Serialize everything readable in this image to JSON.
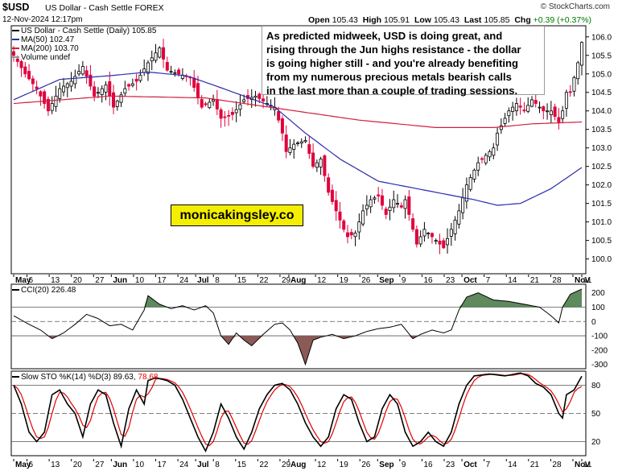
{
  "header": {
    "symbol": "$USD",
    "description": "US Dollar - Cash Settle",
    "exchange": "FOREX",
    "datetime": "12-Nov-2024 12:17pm",
    "open_label": "Open",
    "open": "105.43",
    "high_label": "High",
    "high": "105.91",
    "low_label": "Low",
    "low": "105.43",
    "last_label": "Last",
    "last": "105.85",
    "chg_label": "Chg",
    "chg": "+0.39 (+0.37%)",
    "brand_mark": "© StockCharts.com"
  },
  "annotation": "As predicted midweek, USD is doing great, and\nrising through the Jun highs resistance - the dollar\nis going higher still - and you're already benefiting\nfrom my numerous precious metals bearish calls\nin the last more than a couple of trading sessions.",
  "watermark": "monicakingsley.co",
  "colors": {
    "up": "#000000",
    "down": "#e0003c",
    "ma50": "#2b2baa",
    "ma200": "#d0203c",
    "cci_pos": "#5e8a5e",
    "cci_neg": "#8b5a56",
    "stoch_k": "#000000",
    "stoch_d": "#e00000"
  },
  "chart_data": [
    {
      "type": "candlestick",
      "legend": [
        {
          "key": "price",
          "label": "US Dollar - Cash Settle (Daily) 105.85"
        },
        {
          "key": "ma50",
          "label": "MA(50) 102.47"
        },
        {
          "key": "ma200",
          "label": "MA(200) 103.70"
        },
        {
          "key": "volume",
          "label": "Volume undef"
        }
      ],
      "ylim": [
        99.6,
        106.3
      ],
      "y_ticks": [
        "106.0",
        "105.5",
        "105.0",
        "104.5",
        "104.0",
        "103.5",
        "103.0",
        "102.5",
        "102.0",
        "101.5",
        "101.0",
        "100.5",
        "100.0"
      ],
      "x_labels": [
        "May",
        "6",
        "13",
        "20",
        "27",
        "Jun",
        "10",
        "17",
        "24",
        "Jul",
        "8",
        "15",
        "22",
        "29",
        "Aug",
        "12",
        "19",
        "26",
        "Sep",
        "9",
        "16",
        "23",
        "Oct",
        "7",
        "14",
        "21",
        "28",
        "Nov",
        "11"
      ],
      "close_anchors": [
        [
          0,
          105.5
        ],
        [
          3,
          105.0
        ],
        [
          6,
          104.6
        ],
        [
          9,
          104.0
        ],
        [
          12,
          104.6
        ],
        [
          15,
          104.8
        ],
        [
          18,
          105.2
        ],
        [
          21,
          104.4
        ],
        [
          24,
          104.7
        ],
        [
          26,
          104.1
        ],
        [
          29,
          104.6
        ],
        [
          32,
          104.8
        ],
        [
          35,
          105.3
        ],
        [
          38,
          105.7
        ],
        [
          40,
          105.1
        ],
        [
          43,
          105.0
        ],
        [
          46,
          104.9
        ],
        [
          49,
          104.1
        ],
        [
          52,
          104.3
        ],
        [
          54,
          103.8
        ],
        [
          57,
          103.9
        ],
        [
          60,
          104.3
        ],
        [
          63,
          104.4
        ],
        [
          66,
          104.2
        ],
        [
          68,
          104.1
        ],
        [
          70,
          103.4
        ],
        [
          71,
          102.9
        ],
        [
          73,
          103.1
        ],
        [
          76,
          103.2
        ],
        [
          78,
          102.5
        ],
        [
          80,
          102.7
        ],
        [
          82,
          101.8
        ],
        [
          84,
          101.3
        ],
        [
          86,
          100.8
        ],
        [
          87,
          100.6
        ],
        [
          89,
          100.7
        ],
        [
          91,
          101.3
        ],
        [
          93,
          101.6
        ],
        [
          95,
          101.7
        ],
        [
          97,
          101.2
        ],
        [
          99,
          101.6
        ],
        [
          101,
          101.4
        ],
        [
          102,
          101.6
        ],
        [
          104,
          100.8
        ],
        [
          105,
          100.4
        ],
        [
          107,
          100.8
        ],
        [
          109,
          100.6
        ],
        [
          111,
          100.4
        ],
        [
          112,
          100.3
        ],
        [
          114,
          100.8
        ],
        [
          116,
          101.3
        ],
        [
          118,
          102.0
        ],
        [
          119,
          102.2
        ],
        [
          121,
          102.6
        ],
        [
          123,
          102.8
        ],
        [
          125,
          103.0
        ],
        [
          126,
          103.4
        ],
        [
          128,
          103.8
        ],
        [
          129,
          104.0
        ],
        [
          131,
          104.2
        ],
        [
          133,
          104.0
        ],
        [
          135,
          104.3
        ],
        [
          136,
          104.2
        ],
        [
          138,
          104.0
        ],
        [
          140,
          104.0
        ],
        [
          142,
          103.7
        ],
        [
          143,
          104.0
        ],
        [
          144,
          104.5
        ],
        [
          145,
          104.5
        ],
        [
          147,
          105.3
        ],
        [
          148,
          105.85
        ]
      ],
      "ma50_anchors": [
        [
          0,
          104.3
        ],
        [
          12,
          104.85
        ],
        [
          25,
          104.95
        ],
        [
          35,
          105.05
        ],
        [
          45,
          104.95
        ],
        [
          52,
          104.7
        ],
        [
          60,
          104.4
        ],
        [
          68,
          104.1
        ],
        [
          76,
          103.4
        ],
        [
          85,
          102.7
        ],
        [
          95,
          102.1
        ],
        [
          105,
          101.9
        ],
        [
          115,
          101.7
        ],
        [
          120,
          101.6
        ],
        [
          126,
          101.45
        ],
        [
          132,
          101.5
        ],
        [
          140,
          101.9
        ],
        [
          148,
          102.47
        ]
      ],
      "ma200_anchors": [
        [
          0,
          104.2
        ],
        [
          25,
          104.4
        ],
        [
          50,
          104.35
        ],
        [
          70,
          104.05
        ],
        [
          90,
          103.75
        ],
        [
          110,
          103.55
        ],
        [
          125,
          103.55
        ],
        [
          135,
          103.65
        ],
        [
          148,
          103.7
        ]
      ]
    },
    {
      "type": "line",
      "name": "CCI(20) 226.48",
      "ylim": [
        -330,
        260
      ],
      "y_ticks": [
        "200",
        "100",
        "0",
        "-100",
        "-200",
        "-300"
      ],
      "reference_lines": [
        100,
        0,
        -100
      ],
      "anchors": [
        [
          0,
          40
        ],
        [
          4,
          -20
        ],
        [
          7,
          -60
        ],
        [
          10,
          -120
        ],
        [
          13,
          -80
        ],
        [
          16,
          -20
        ],
        [
          19,
          50
        ],
        [
          22,
          20
        ],
        [
          25,
          -30
        ],
        [
          28,
          -20
        ],
        [
          31,
          -60
        ],
        [
          34,
          80
        ],
        [
          35,
          180
        ],
        [
          38,
          120
        ],
        [
          41,
          90
        ],
        [
          44,
          110
        ],
        [
          47,
          80
        ],
        [
          50,
          110
        ],
        [
          52,
          60
        ],
        [
          54,
          -100
        ],
        [
          56,
          -160
        ],
        [
          58,
          -80
        ],
        [
          60,
          -130
        ],
        [
          62,
          -170
        ],
        [
          65,
          -90
        ],
        [
          68,
          -20
        ],
        [
          70,
          -10
        ],
        [
          72,
          -60
        ],
        [
          74,
          -150
        ],
        [
          76,
          -300
        ],
        [
          78,
          -130
        ],
        [
          80,
          -110
        ],
        [
          83,
          -90
        ],
        [
          86,
          -120
        ],
        [
          89,
          -100
        ],
        [
          92,
          -70
        ],
        [
          95,
          -50
        ],
        [
          98,
          -40
        ],
        [
          101,
          -20
        ],
        [
          104,
          -120
        ],
        [
          106,
          -90
        ],
        [
          109,
          -60
        ],
        [
          112,
          -80
        ],
        [
          114,
          -60
        ],
        [
          116,
          80
        ],
        [
          118,
          170
        ],
        [
          121,
          200
        ],
        [
          125,
          150
        ],
        [
          129,
          140
        ],
        [
          133,
          120
        ],
        [
          137,
          100
        ],
        [
          140,
          40
        ],
        [
          142,
          -10
        ],
        [
          143,
          100
        ],
        [
          145,
          190
        ],
        [
          148,
          226
        ]
      ]
    },
    {
      "type": "line",
      "name": "Slow STO %K(14) %D(3) 89.63, 78.68",
      "series": [
        {
          "name": "%K(14)",
          "value": "89.63"
        },
        {
          "name": "%D(3)",
          "value": "78.68"
        }
      ],
      "ylim": [
        5,
        95
      ],
      "y_ticks": [
        "80",
        "50",
        "20"
      ],
      "reference_lines": [
        80,
        50,
        20
      ],
      "k_anchors": [
        [
          0,
          80
        ],
        [
          2,
          60
        ],
        [
          4,
          30
        ],
        [
          6,
          20
        ],
        [
          8,
          30
        ],
        [
          10,
          70
        ],
        [
          12,
          75
        ],
        [
          14,
          60
        ],
        [
          16,
          50
        ],
        [
          18,
          25
        ],
        [
          20,
          60
        ],
        [
          22,
          75
        ],
        [
          24,
          70
        ],
        [
          26,
          40
        ],
        [
          28,
          15
        ],
        [
          30,
          55
        ],
        [
          32,
          75
        ],
        [
          34,
          60
        ],
        [
          35,
          85
        ],
        [
          37,
          88
        ],
        [
          40,
          85
        ],
        [
          42,
          80
        ],
        [
          44,
          65
        ],
        [
          46,
          45
        ],
        [
          48,
          25
        ],
        [
          50,
          10
        ],
        [
          52,
          30
        ],
        [
          54,
          60
        ],
        [
          56,
          45
        ],
        [
          58,
          25
        ],
        [
          60,
          12
        ],
        [
          62,
          30
        ],
        [
          64,
          55
        ],
        [
          66,
          70
        ],
        [
          68,
          80
        ],
        [
          70,
          82
        ],
        [
          72,
          75
        ],
        [
          74,
          60
        ],
        [
          76,
          40
        ],
        [
          78,
          25
        ],
        [
          80,
          15
        ],
        [
          82,
          25
        ],
        [
          84,
          55
        ],
        [
          86,
          70
        ],
        [
          88,
          65
        ],
        [
          90,
          40
        ],
        [
          92,
          20
        ],
        [
          94,
          25
        ],
        [
          96,
          55
        ],
        [
          98,
          70
        ],
        [
          100,
          60
        ],
        [
          102,
          30
        ],
        [
          104,
          15
        ],
        [
          106,
          20
        ],
        [
          108,
          30
        ],
        [
          110,
          20
        ],
        [
          112,
          15
        ],
        [
          114,
          30
        ],
        [
          116,
          60
        ],
        [
          118,
          80
        ],
        [
          120,
          90
        ],
        [
          124,
          92
        ],
        [
          128,
          90
        ],
        [
          132,
          93
        ],
        [
          134,
          90
        ],
        [
          136,
          82
        ],
        [
          138,
          78
        ],
        [
          140,
          70
        ],
        [
          141,
          60
        ],
        [
          142,
          50
        ],
        [
          143,
          45
        ],
        [
          144,
          70
        ],
        [
          146,
          75
        ],
        [
          148,
          89.63
        ]
      ],
      "x_labels": [
        "May",
        "6",
        "13",
        "20",
        "27",
        "Jun",
        "10",
        "17",
        "24",
        "Jul",
        "8",
        "15",
        "22",
        "29",
        "Aug",
        "12",
        "19",
        "26",
        "Sep",
        "9",
        "16",
        "23",
        "Oct",
        "7",
        "14",
        "21",
        "28",
        "Nov",
        "11"
      ]
    }
  ]
}
